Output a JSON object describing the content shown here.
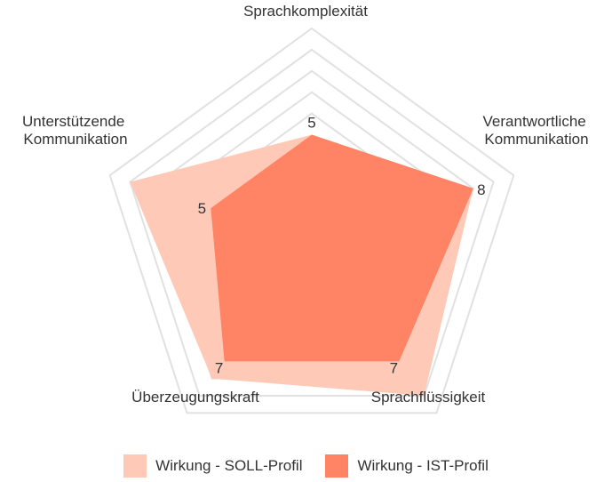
{
  "chart_data": {
    "type": "radar",
    "title": "",
    "categories": [
      "Sprachkomplexität",
      "Verantwortliche Kommunikation",
      "Sprachflüssigkeit",
      "Überzeugungskraft",
      "Unterstützende Kommunikation"
    ],
    "rlim": [
      0,
      10
    ],
    "grid_levels": [
      6,
      7,
      8,
      9,
      10
    ],
    "grid": true,
    "legend_position": "bottom",
    "series": [
      {
        "name": "Wirkung - SOLL-Profil",
        "values": [
          5,
          8,
          9,
          8,
          9
        ],
        "color": "#ffc9b8"
      },
      {
        "name": "Wirkung - IST-Profil",
        "values": [
          5,
          8,
          7,
          7,
          5
        ],
        "color": "#ff8465",
        "data_labels": [
          "5",
          "8",
          "7",
          "7",
          "5"
        ]
      }
    ]
  }
}
